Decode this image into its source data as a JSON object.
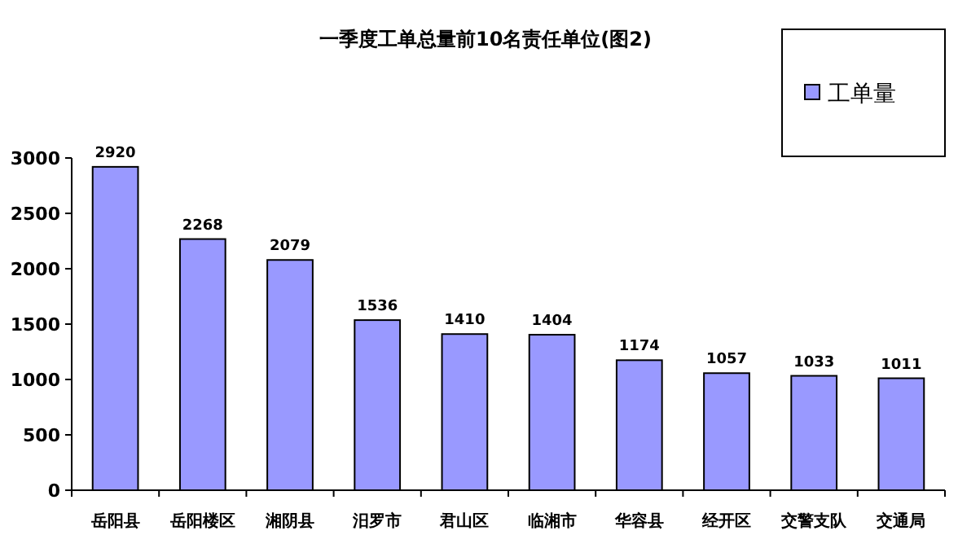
{
  "chart_data": {
    "type": "bar",
    "title": "一季度工单总量前10名责任单位(图2)",
    "categories": [
      "岳阳县",
      "岳阳楼区",
      "湘阴县",
      "汨罗市",
      "君山区",
      "临湘市",
      "华容县",
      "经开区",
      "交警支队",
      "交通局"
    ],
    "series": [
      {
        "name": "工单量",
        "color": "#9999ff",
        "values": [
          2920,
          2268,
          2079,
          1536,
          1410,
          1404,
          1174,
          1057,
          1033,
          1011
        ]
      }
    ],
    "ylim": [
      0,
      3000
    ],
    "yticks": [
      0,
      500,
      1000,
      1500,
      2000,
      2500,
      3000
    ],
    "data_labels": true,
    "legend": "top right",
    "grid": false
  }
}
